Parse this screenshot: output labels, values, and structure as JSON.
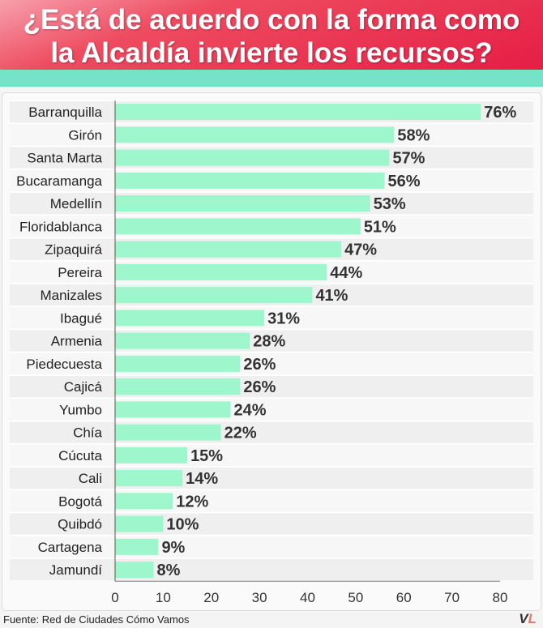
{
  "title_line1": "¿Está de acuerdo con la forma como",
  "title_line2": "la Alcaldía invierte los recursos?",
  "source": "Fuente: Red de Ciudades Cómo Vamos",
  "logo": {
    "v": "V",
    "l": "L"
  },
  "colors": {
    "bar": "#9ef7cc",
    "banner": "#e51d45",
    "strip": "#74e3c8"
  },
  "chart_data": {
    "type": "bar",
    "orientation": "horizontal",
    "title": "¿Está de acuerdo con la forma como la Alcaldía invierte los recursos?",
    "categories": [
      "Barranquilla",
      "Girón",
      "Santa Marta",
      "Bucaramanga",
      "Medellín",
      "Floridablanca",
      "Zipaquirá",
      "Pereira",
      "Manizales",
      "Ibagué",
      "Armenia",
      "Piedecuesta",
      "Cajicá",
      "Yumbo",
      "Chía",
      "Cúcuta",
      "Cali",
      "Bogotá",
      "Quibdó",
      "Cartagena",
      "Jamundí"
    ],
    "values": [
      76,
      58,
      57,
      56,
      53,
      51,
      47,
      44,
      41,
      31,
      28,
      26,
      26,
      24,
      22,
      15,
      14,
      12,
      10,
      9,
      8
    ],
    "value_suffix": "%",
    "xlim": [
      0,
      80
    ],
    "xticks": [
      0,
      10,
      20,
      30,
      40,
      50,
      60,
      70,
      80
    ]
  }
}
